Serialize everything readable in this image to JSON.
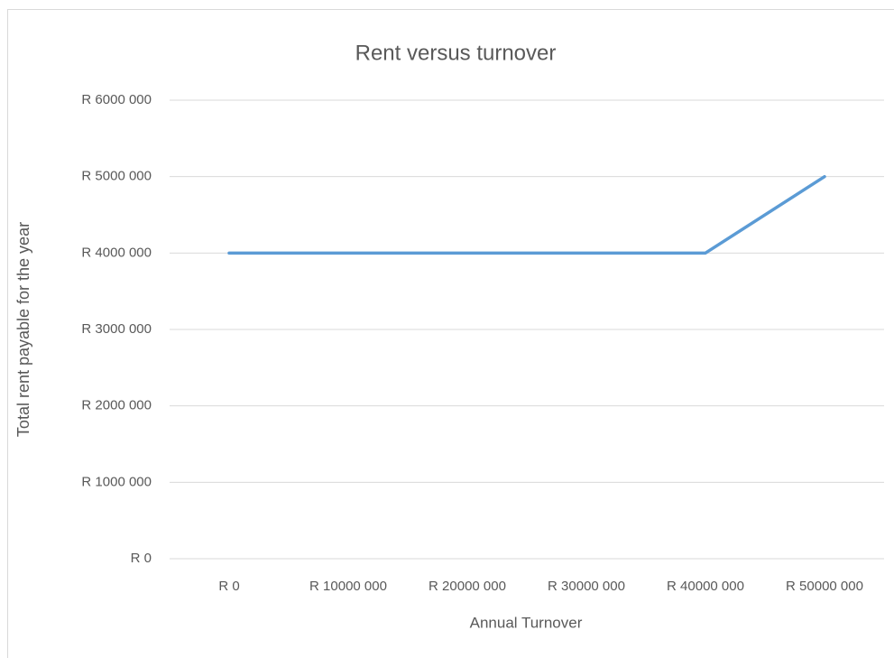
{
  "chart_data": {
    "type": "line",
    "title": "Rent versus turnover",
    "x_label": "Annual Turnover",
    "y_label": "Total rent payable for the year",
    "categories": [
      "R 0",
      "R 10000 000",
      "R 20000 000",
      "R 30000 000",
      "R 40000 000",
      "R 50000 000"
    ],
    "series": [
      {
        "name": "Total rent payable for the year",
        "color": "#5b9bd5",
        "values": [
          4000000,
          4000000,
          4000000,
          4000000,
          4000000,
          5000000
        ]
      }
    ],
    "ylim": [
      0,
      6000000
    ],
    "yticks": [
      {
        "value": 0,
        "label": "R 0"
      },
      {
        "value": 1000000,
        "label": "R 1000 000"
      },
      {
        "value": 2000000,
        "label": "R 2000 000"
      },
      {
        "value": 3000000,
        "label": "R 3000 000"
      },
      {
        "value": 4000000,
        "label": "R 4000 000"
      },
      {
        "value": 5000000,
        "label": "R 5000 000"
      },
      {
        "value": 6000000,
        "label": "R 6000 000"
      }
    ],
    "grid": true
  }
}
